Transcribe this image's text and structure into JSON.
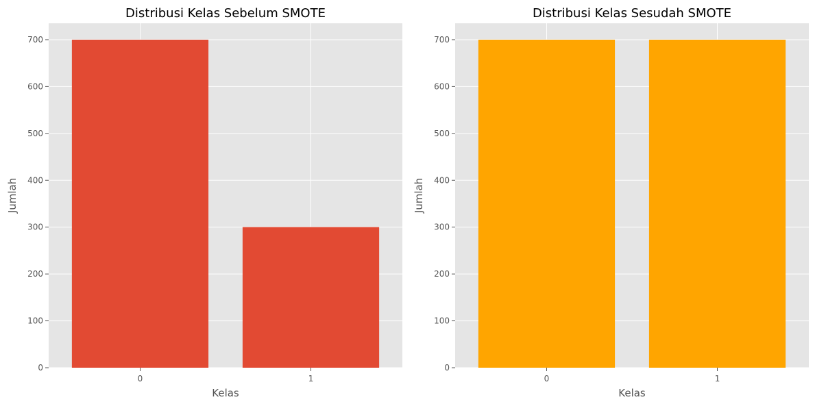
{
  "chart_data": [
    {
      "type": "bar",
      "title": "Distribusi Kelas Sebelum SMOTE",
      "xlabel": "Kelas",
      "ylabel": "Jumlah",
      "categories": [
        "0",
        "1"
      ],
      "values": [
        700,
        300
      ],
      "color": "#e24a33",
      "ylim": [
        0,
        735
      ],
      "yticks": [
        0,
        100,
        200,
        300,
        400,
        500,
        600,
        700
      ],
      "grid": true
    },
    {
      "type": "bar",
      "title": "Distribusi Kelas Sesudah SMOTE",
      "xlabel": "Kelas",
      "ylabel": "Jumlah",
      "categories": [
        "0",
        "1"
      ],
      "values": [
        700,
        700
      ],
      "color": "#ffa500",
      "ylim": [
        0,
        735
      ],
      "yticks": [
        0,
        100,
        200,
        300,
        400,
        500,
        600,
        700
      ],
      "grid": true
    }
  ]
}
